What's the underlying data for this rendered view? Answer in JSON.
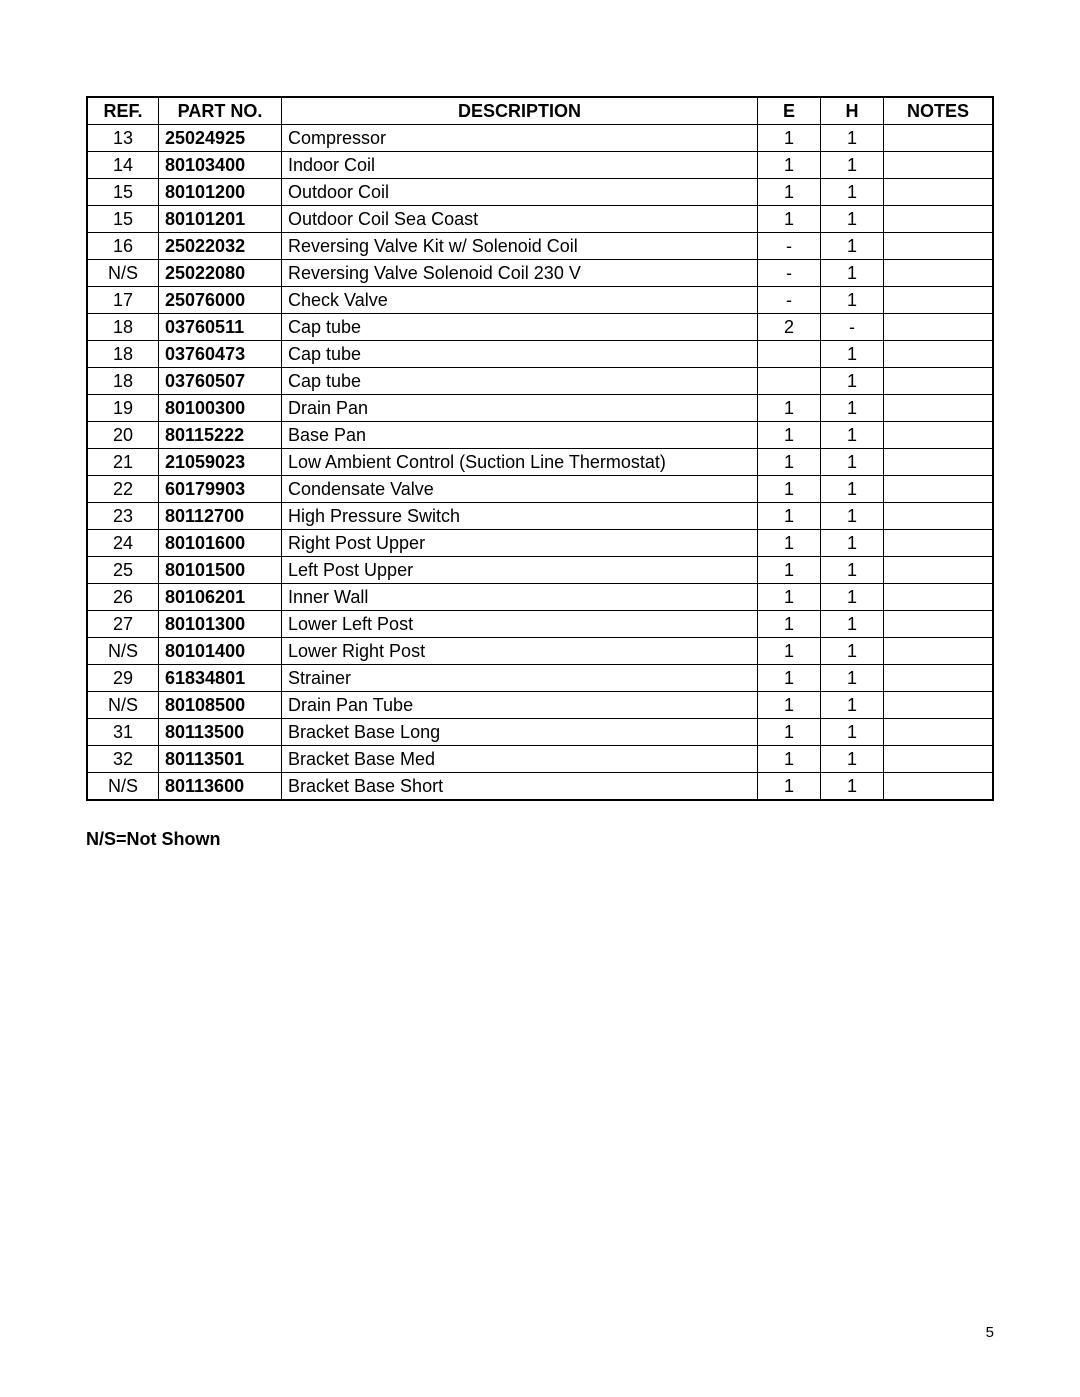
{
  "table": {
    "columns": [
      "REF.",
      "PART NO.",
      "DESCRIPTION",
      "E",
      "H",
      "NOTES"
    ],
    "column_keys": [
      "ref",
      "part",
      "desc",
      "e",
      "h",
      "notes"
    ],
    "column_classes": [
      "col-ref",
      "col-part",
      "col-desc",
      "col-e",
      "col-h",
      "col-notes"
    ],
    "header_fontweight": "bold",
    "border_color": "#000000",
    "outer_border_width": 2,
    "inner_border_width": 1,
    "font_size": 18,
    "rows": [
      {
        "ref": "13",
        "part": "25024925",
        "desc": "Compressor",
        "e": "1",
        "h": "1",
        "notes": ""
      },
      {
        "ref": "14",
        "part": "80103400",
        "desc": "Indoor Coil",
        "e": "1",
        "h": "1",
        "notes": ""
      },
      {
        "ref": "15",
        "part": "80101200",
        "desc": "Outdoor Coil",
        "e": "1",
        "h": "1",
        "notes": ""
      },
      {
        "ref": "15",
        "part": "80101201",
        "desc": "Outdoor Coil Sea Coast",
        "e": "1",
        "h": "1",
        "notes": ""
      },
      {
        "ref": "16",
        "part": "25022032",
        "desc": "Reversing Valve Kit w/ Solenoid Coil",
        "e": "-",
        "h": "1",
        "notes": ""
      },
      {
        "ref": "N/S",
        "part": "25022080",
        "desc": "Reversing Valve Solenoid Coil 230 V",
        "e": "-",
        "h": "1",
        "notes": ""
      },
      {
        "ref": "17",
        "part": "25076000",
        "desc": "Check Valve",
        "e": "-",
        "h": "1",
        "notes": ""
      },
      {
        "ref": "18",
        "part": "03760511",
        "desc": "Cap tube",
        "e": "2",
        "h": "-",
        "notes": ""
      },
      {
        "ref": "18",
        "part": "03760473",
        "desc": "Cap tube",
        "e": "",
        "h": "1",
        "notes": ""
      },
      {
        "ref": "18",
        "part": "03760507",
        "desc": "Cap tube",
        "e": "",
        "h": "1",
        "notes": ""
      },
      {
        "ref": "19",
        "part": "80100300",
        "desc": "Drain Pan",
        "e": "1",
        "h": "1",
        "notes": ""
      },
      {
        "ref": "20",
        "part": "80115222",
        "desc": "Base Pan",
        "e": "1",
        "h": "1",
        "notes": ""
      },
      {
        "ref": "21",
        "part": "21059023",
        "desc": "Low Ambient Control (Suction Line Thermostat)",
        "e": "1",
        "h": "1",
        "notes": ""
      },
      {
        "ref": "22",
        "part": "60179903",
        "desc": "Condensate Valve",
        "e": "1",
        "h": "1",
        "notes": ""
      },
      {
        "ref": "23",
        "part": "80112700",
        "desc": "High Pressure Switch",
        "e": "1",
        "h": "1",
        "notes": ""
      },
      {
        "ref": "24",
        "part": "80101600",
        "desc": "Right Post Upper",
        "e": "1",
        "h": "1",
        "notes": ""
      },
      {
        "ref": "25",
        "part": "80101500",
        "desc": "Left Post Upper",
        "e": "1",
        "h": "1",
        "notes": ""
      },
      {
        "ref": "26",
        "part": "80106201",
        "desc": "Inner Wall",
        "e": "1",
        "h": "1",
        "notes": ""
      },
      {
        "ref": "27",
        "part": "80101300",
        "desc": "Lower Left Post",
        "e": "1",
        "h": "1",
        "notes": ""
      },
      {
        "ref": "N/S",
        "part": "80101400",
        "desc": "Lower Right Post",
        "e": "1",
        "h": "1",
        "notes": ""
      },
      {
        "ref": "29",
        "part": "61834801",
        "desc": "Strainer",
        "e": "1",
        "h": "1",
        "notes": ""
      },
      {
        "ref": "N/S",
        "part": "80108500",
        "desc": "Drain Pan Tube",
        "e": "1",
        "h": "1",
        "notes": ""
      },
      {
        "ref": "31",
        "part": "80113500",
        "desc": "Bracket Base Long",
        "e": "1",
        "h": "1",
        "notes": ""
      },
      {
        "ref": "32",
        "part": "80113501",
        "desc": "Bracket Base Med",
        "e": "1",
        "h": "1",
        "notes": ""
      },
      {
        "ref": "N/S",
        "part": "80113600",
        "desc": "Bracket Base Short",
        "e": "1",
        "h": "1",
        "notes": ""
      }
    ]
  },
  "footnote": "N/S=Not Shown",
  "page_number": "5"
}
